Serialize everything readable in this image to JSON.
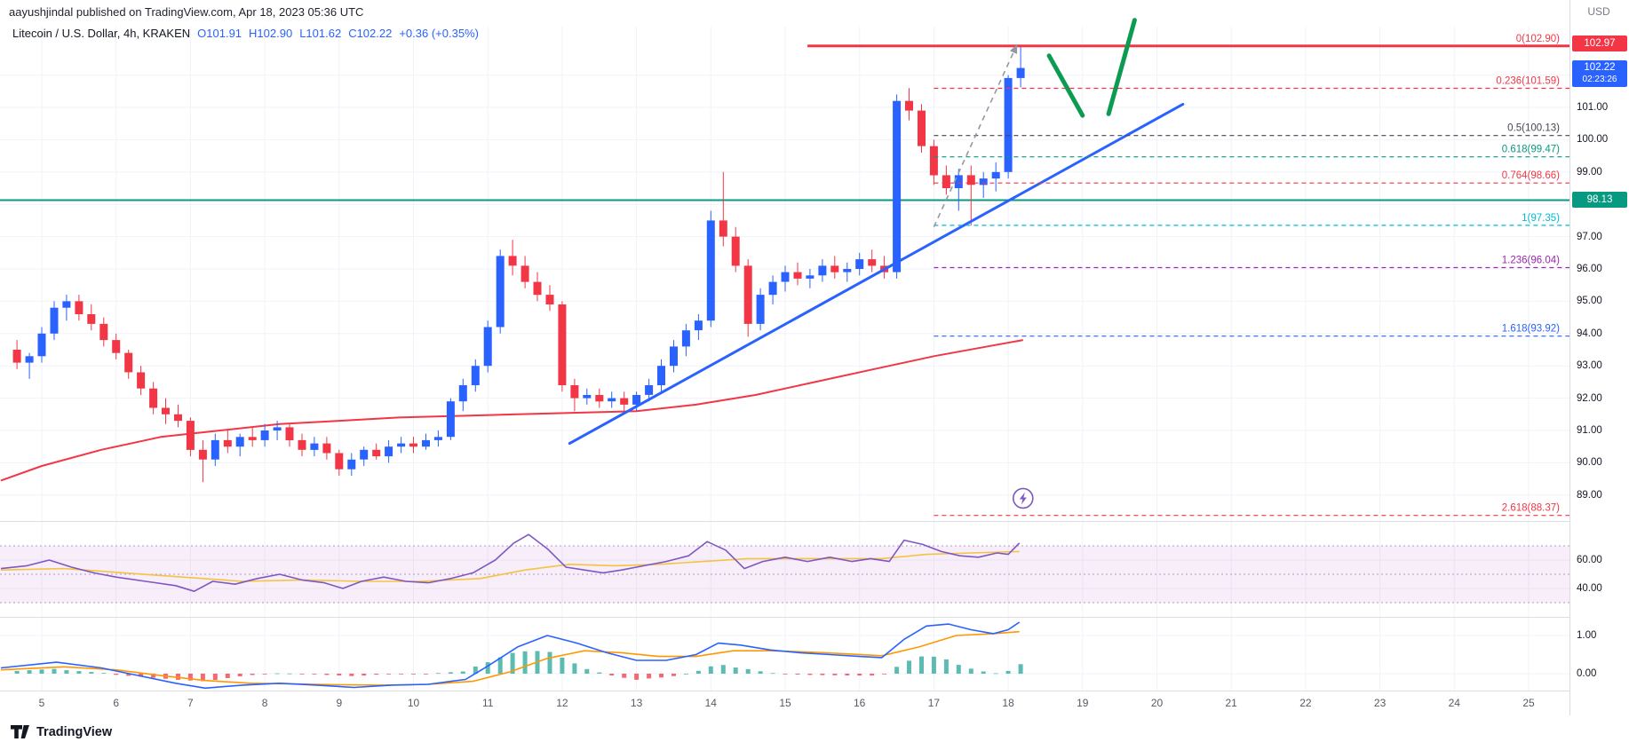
{
  "header": {
    "publisher": "aayushjindal published on TradingView.com, Apr 18, 2023 05:36 UTC",
    "symbol": "Litecoin / U.S. Dollar, 4h, KRAKEN",
    "ohlc": {
      "open": "O101.91",
      "high": "H102.90",
      "low": "L101.62",
      "close": "C102.22",
      "change": "+0.36 (+0.35%)"
    }
  },
  "axis": {
    "currency": "USD",
    "price_labels": [
      "101.00",
      "100.00",
      "99.00",
      "97.00",
      "96.00",
      "95.00",
      "94.00",
      "93.00",
      "92.00",
      "91.00",
      "90.00",
      "89.00"
    ],
    "price_values": [
      101,
      100,
      99,
      97,
      96,
      95,
      94,
      93,
      92,
      91,
      90,
      89
    ],
    "badges": {
      "resistance": {
        "label": "102.97",
        "price": 102.97,
        "color": "#f23645"
      },
      "last": {
        "label": "102.22",
        "countdown": "02:23:26",
        "price": 102.22,
        "color": "#2962ff"
      },
      "support": {
        "label": "98.13",
        "price": 98.13,
        "color": "#089981"
      }
    },
    "rsi_labels": [
      {
        "value": 60,
        "label": "60.00"
      },
      {
        "value": 40,
        "label": "40.00"
      }
    ],
    "macd_labels": [
      {
        "value": 1,
        "label": "1.00"
      },
      {
        "value": 0,
        "label": "0.00"
      }
    ],
    "time_labels": [
      "5",
      "6",
      "7",
      "8",
      "9",
      "10",
      "11",
      "12",
      "13",
      "14",
      "15",
      "16",
      "17",
      "18",
      "19",
      "20",
      "21",
      "22",
      "23",
      "24",
      "25"
    ]
  },
  "chart_data": {
    "type": "candlestick",
    "title": "Litecoin / U.S. Dollar, 4h, KRAKEN",
    "x_unit": "day of April 2023",
    "x_tick_days": [
      5,
      6,
      7,
      8,
      9,
      10,
      11,
      12,
      13,
      14,
      15,
      16,
      17,
      18,
      19,
      20,
      21,
      22,
      23,
      24,
      25
    ],
    "y_range": [
      88.2,
      103.4
    ],
    "up_color": "#2962ff",
    "down_color": "#f23645",
    "candles": {
      "start_day": 4.6667,
      "interval_days": 0.1666667,
      "columns": [
        "open",
        "high",
        "low",
        "close"
      ],
      "ohlc": [
        [
          93.5,
          93.8,
          92.9,
          93.1
        ],
        [
          93.1,
          93.4,
          92.6,
          93.3
        ],
        [
          93.3,
          94.2,
          93.1,
          94.0
        ],
        [
          94.0,
          95.0,
          93.8,
          94.8
        ],
        [
          94.8,
          95.2,
          94.4,
          95.0
        ],
        [
          95.0,
          95.2,
          94.4,
          94.6
        ],
        [
          94.6,
          94.9,
          94.1,
          94.3
        ],
        [
          94.3,
          94.5,
          93.6,
          93.8
        ],
        [
          93.8,
          94.0,
          93.2,
          93.4
        ],
        [
          93.4,
          93.5,
          92.6,
          92.8
        ],
        [
          92.8,
          93.0,
          92.1,
          92.3
        ],
        [
          92.3,
          92.5,
          91.5,
          91.7
        ],
        [
          91.7,
          92.0,
          91.2,
          91.5
        ],
        [
          91.5,
          91.8,
          91.1,
          91.3
        ],
        [
          91.3,
          91.4,
          90.2,
          90.4
        ],
        [
          90.4,
          90.7,
          89.4,
          90.1
        ],
        [
          90.1,
          90.9,
          89.9,
          90.7
        ],
        [
          90.7,
          91.0,
          90.3,
          90.5
        ],
        [
          90.5,
          90.9,
          90.2,
          90.8
        ],
        [
          90.8,
          91.1,
          90.5,
          90.7
        ],
        [
          90.7,
          91.2,
          90.5,
          91.0
        ],
        [
          91.0,
          91.3,
          90.7,
          91.1
        ],
        [
          91.1,
          91.2,
          90.5,
          90.7
        ],
        [
          90.7,
          90.9,
          90.2,
          90.4
        ],
        [
          90.4,
          90.8,
          90.2,
          90.6
        ],
        [
          90.6,
          90.8,
          90.1,
          90.3
        ],
        [
          90.3,
          90.4,
          89.6,
          89.8
        ],
        [
          89.8,
          90.3,
          89.6,
          90.1
        ],
        [
          90.1,
          90.5,
          89.9,
          90.4
        ],
        [
          90.4,
          90.6,
          90.1,
          90.2
        ],
        [
          90.2,
          90.7,
          90.0,
          90.5
        ],
        [
          90.5,
          90.8,
          90.3,
          90.6
        ],
        [
          90.6,
          90.8,
          90.3,
          90.5
        ],
        [
          90.5,
          90.9,
          90.4,
          90.7
        ],
        [
          90.7,
          91.0,
          90.5,
          90.8
        ],
        [
          90.8,
          92.0,
          90.7,
          91.9
        ],
        [
          91.9,
          92.6,
          91.6,
          92.4
        ],
        [
          92.4,
          93.2,
          92.2,
          93.0
        ],
        [
          93.0,
          94.4,
          92.8,
          94.2
        ],
        [
          94.2,
          96.6,
          94.0,
          96.4
        ],
        [
          96.4,
          96.9,
          95.8,
          96.1
        ],
        [
          96.1,
          96.4,
          95.4,
          95.6
        ],
        [
          95.6,
          95.9,
          95.0,
          95.2
        ],
        [
          95.2,
          95.5,
          94.7,
          94.9
        ],
        [
          94.9,
          95.0,
          92.2,
          92.4
        ],
        [
          92.4,
          92.6,
          91.6,
          92.0
        ],
        [
          92.0,
          92.3,
          91.8,
          92.1
        ],
        [
          92.1,
          92.3,
          91.7,
          91.9
        ],
        [
          91.9,
          92.2,
          91.7,
          92.0
        ],
        [
          92.0,
          92.2,
          91.6,
          91.8
        ],
        [
          91.8,
          92.2,
          91.6,
          92.1
        ],
        [
          92.1,
          92.6,
          91.9,
          92.4
        ],
        [
          92.4,
          93.2,
          92.2,
          93.0
        ],
        [
          93.0,
          93.8,
          92.8,
          93.6
        ],
        [
          93.6,
          94.3,
          93.3,
          94.1
        ],
        [
          94.1,
          94.6,
          93.8,
          94.4
        ],
        [
          94.4,
          97.8,
          94.2,
          97.5
        ],
        [
          97.5,
          99.0,
          96.7,
          97.0
        ],
        [
          97.0,
          97.3,
          95.9,
          96.1
        ],
        [
          96.1,
          96.3,
          93.9,
          94.3
        ],
        [
          94.3,
          95.4,
          94.1,
          95.2
        ],
        [
          95.2,
          95.8,
          94.9,
          95.6
        ],
        [
          95.6,
          96.1,
          95.3,
          95.9
        ],
        [
          95.9,
          96.2,
          95.5,
          95.7
        ],
        [
          95.7,
          96.0,
          95.4,
          95.8
        ],
        [
          95.8,
          96.3,
          95.6,
          96.1
        ],
        [
          96.1,
          96.4,
          95.7,
          95.9
        ],
        [
          95.9,
          96.2,
          95.6,
          96.0
        ],
        [
          96.0,
          96.5,
          95.8,
          96.3
        ],
        [
          96.3,
          96.6,
          95.9,
          96.1
        ],
        [
          96.1,
          96.4,
          95.7,
          95.9
        ],
        [
          95.9,
          101.4,
          95.7,
          101.2
        ],
        [
          101.2,
          101.6,
          100.6,
          100.9
        ],
        [
          100.9,
          101.1,
          99.6,
          99.8
        ],
        [
          99.8,
          100.0,
          98.6,
          98.9
        ],
        [
          98.9,
          99.2,
          98.3,
          98.5
        ],
        [
          98.5,
          99.1,
          97.8,
          98.9
        ],
        [
          98.9,
          99.2,
          97.35,
          98.6
        ],
        [
          98.6,
          99.0,
          98.2,
          98.8
        ],
        [
          98.8,
          99.3,
          98.4,
          99.0
        ],
        [
          99.0,
          102.0,
          98.8,
          101.91
        ],
        [
          101.91,
          102.9,
          101.62,
          102.22
        ]
      ]
    },
    "red_ma": [
      [
        4.45,
        89.45
      ],
      [
        5.0,
        89.9
      ],
      [
        5.8,
        90.4
      ],
      [
        6.6,
        90.8
      ],
      [
        7.4,
        91.0
      ],
      [
        8.2,
        91.2
      ],
      [
        9.0,
        91.3
      ],
      [
        9.8,
        91.4
      ],
      [
        10.6,
        91.45
      ],
      [
        11.4,
        91.5
      ],
      [
        12.2,
        91.55
      ],
      [
        13.0,
        91.6
      ],
      [
        13.8,
        91.8
      ],
      [
        14.6,
        92.1
      ],
      [
        15.4,
        92.5
      ],
      [
        16.2,
        92.9
      ],
      [
        17.0,
        93.3
      ],
      [
        17.6,
        93.55
      ],
      [
        18.2,
        93.8
      ]
    ],
    "support_hline": {
      "price": 98.13,
      "color": "#089981"
    },
    "trendline": {
      "from_day": 12.1,
      "from_price": 90.6,
      "to_day": 20.35,
      "to_price": 101.1,
      "color": "#2962ff"
    },
    "fib_levels": [
      {
        "label": "0(102.90)",
        "price": 102.9,
        "color": "#f23645",
        "dashed": false,
        "from_day": 15.3,
        "width": 3
      },
      {
        "label": "0.236(101.59)",
        "price": 101.59,
        "color": "#f23645",
        "dashed": true,
        "from_day": 17.0
      },
      {
        "label": "0.5(100.13)",
        "price": 100.13,
        "color": "#434651",
        "dashed": true,
        "from_day": 17.0
      },
      {
        "label": "0.618(99.47)",
        "price": 99.47,
        "color": "#089981",
        "dashed": true,
        "from_day": 17.0
      },
      {
        "label": "0.764(98.66)",
        "price": 98.66,
        "color": "#f23645",
        "dashed": true,
        "from_day": 17.0
      },
      {
        "label": "1(97.35)",
        "price": 97.35,
        "color": "#00bcd4",
        "dashed": true,
        "from_day": 17.0
      },
      {
        "label": "1.236(96.04)",
        "price": 96.04,
        "color": "#9c27b0",
        "dashed": true,
        "from_day": 17.0
      },
      {
        "label": "1.618(93.92)",
        "price": 93.92,
        "color": "#2962ff",
        "dashed": true,
        "from_day": 17.0
      },
      {
        "label": "2.618(88.37)",
        "price": 88.37,
        "color": "#f23645",
        "dashed": true,
        "from_day": 17.0
      }
    ],
    "projection": {
      "dashed_arrow": {
        "from_day": 17.0,
        "from_price": 97.3,
        "to_day": 18.12,
        "to_price": 102.95,
        "color": "#9598a1"
      },
      "green_strokes": [
        {
          "from_day": 18.55,
          "from_price": 102.6,
          "to_day": 19.0,
          "to_price": 100.75
        },
        {
          "from_day": 19.35,
          "from_price": 100.8,
          "to_day": 19.7,
          "to_price": 103.7
        }
      ],
      "green_color": "#0c9b51"
    },
    "marker": {
      "day": 18.2,
      "price": 88.9,
      "icon": "lightning-icon",
      "color": "#7e57c2"
    },
    "rsi": {
      "line_color": "#7e57c2",
      "ma_color": "#f5c242",
      "band": [
        30,
        70
      ],
      "mid": 50,
      "band_color": "rgba(156,39,176,0.08)",
      "line": [
        [
          4.45,
          54
        ],
        [
          4.8,
          56
        ],
        [
          5.1,
          60
        ],
        [
          5.4,
          55
        ],
        [
          5.7,
          51
        ],
        [
          6.0,
          48
        ],
        [
          6.4,
          45
        ],
        [
          6.8,
          42
        ],
        [
          7.05,
          38
        ],
        [
          7.3,
          45
        ],
        [
          7.6,
          43
        ],
        [
          7.9,
          47
        ],
        [
          8.2,
          50
        ],
        [
          8.5,
          46
        ],
        [
          8.8,
          44
        ],
        [
          9.05,
          40
        ],
        [
          9.3,
          45
        ],
        [
          9.6,
          48
        ],
        [
          9.9,
          45
        ],
        [
          10.2,
          44
        ],
        [
          10.5,
          47
        ],
        [
          10.8,
          51
        ],
        [
          11.1,
          60
        ],
        [
          11.35,
          72
        ],
        [
          11.55,
          78
        ],
        [
          11.8,
          68
        ],
        [
          12.05,
          55
        ],
        [
          12.3,
          53
        ],
        [
          12.55,
          51
        ],
        [
          12.8,
          53
        ],
        [
          13.1,
          56
        ],
        [
          13.4,
          59
        ],
        [
          13.7,
          63
        ],
        [
          13.95,
          73
        ],
        [
          14.2,
          67
        ],
        [
          14.45,
          54
        ],
        [
          14.7,
          59
        ],
        [
          15.0,
          62
        ],
        [
          15.3,
          59
        ],
        [
          15.6,
          62
        ],
        [
          15.9,
          59
        ],
        [
          16.15,
          61
        ],
        [
          16.4,
          59
        ],
        [
          16.6,
          74
        ],
        [
          16.85,
          71
        ],
        [
          17.1,
          66
        ],
        [
          17.35,
          63
        ],
        [
          17.6,
          62
        ],
        [
          17.85,
          65
        ],
        [
          18.0,
          64
        ],
        [
          18.15,
          72
        ]
      ],
      "ma": [
        [
          4.45,
          53
        ],
        [
          5.3,
          54
        ],
        [
          6.1,
          51
        ],
        [
          6.9,
          48
        ],
        [
          7.7,
          45
        ],
        [
          8.5,
          46
        ],
        [
          9.3,
          45
        ],
        [
          10.1,
          45
        ],
        [
          10.9,
          47
        ],
        [
          11.5,
          53
        ],
        [
          12.1,
          57
        ],
        [
          12.7,
          56
        ],
        [
          13.3,
          57
        ],
        [
          13.9,
          59
        ],
        [
          14.5,
          61
        ],
        [
          15.1,
          61
        ],
        [
          15.7,
          61
        ],
        [
          16.3,
          61
        ],
        [
          16.9,
          64
        ],
        [
          17.5,
          65
        ],
        [
          18.15,
          66
        ]
      ]
    },
    "macd": {
      "macd_color": "#2962ff",
      "signal_color": "#ff9800",
      "hist_up": "#26a69a",
      "hist_down": "#f23645",
      "macd": [
        [
          4.45,
          0.15
        ],
        [
          5.2,
          0.3
        ],
        [
          5.8,
          0.15
        ],
        [
          6.3,
          -0.05
        ],
        [
          6.8,
          -0.25
        ],
        [
          7.2,
          -0.38
        ],
        [
          7.7,
          -0.3
        ],
        [
          8.2,
          -0.25
        ],
        [
          8.7,
          -0.3
        ],
        [
          9.2,
          -0.36
        ],
        [
          9.7,
          -0.3
        ],
        [
          10.2,
          -0.28
        ],
        [
          10.7,
          -0.15
        ],
        [
          11.0,
          0.2
        ],
        [
          11.4,
          0.7
        ],
        [
          11.8,
          1.0
        ],
        [
          12.2,
          0.8
        ],
        [
          12.6,
          0.55
        ],
        [
          13.0,
          0.35
        ],
        [
          13.4,
          0.35
        ],
        [
          13.8,
          0.5
        ],
        [
          14.1,
          0.8
        ],
        [
          14.4,
          0.75
        ],
        [
          14.8,
          0.62
        ],
        [
          15.2,
          0.55
        ],
        [
          15.6,
          0.5
        ],
        [
          16.0,
          0.45
        ],
        [
          16.3,
          0.42
        ],
        [
          16.6,
          0.9
        ],
        [
          16.9,
          1.25
        ],
        [
          17.2,
          1.3
        ],
        [
          17.5,
          1.15
        ],
        [
          17.8,
          1.05
        ],
        [
          18.0,
          1.15
        ],
        [
          18.15,
          1.35
        ]
      ],
      "signal": [
        [
          4.45,
          0.1
        ],
        [
          5.3,
          0.18
        ],
        [
          6.0,
          0.1
        ],
        [
          6.6,
          -0.05
        ],
        [
          7.2,
          -0.18
        ],
        [
          7.8,
          -0.25
        ],
        [
          8.4,
          -0.27
        ],
        [
          9.0,
          -0.29
        ],
        [
          9.6,
          -0.3
        ],
        [
          10.2,
          -0.28
        ],
        [
          10.8,
          -0.2
        ],
        [
          11.3,
          0.05
        ],
        [
          11.8,
          0.4
        ],
        [
          12.3,
          0.6
        ],
        [
          12.8,
          0.55
        ],
        [
          13.3,
          0.45
        ],
        [
          13.8,
          0.45
        ],
        [
          14.3,
          0.6
        ],
        [
          14.8,
          0.6
        ],
        [
          15.3,
          0.57
        ],
        [
          15.8,
          0.52
        ],
        [
          16.3,
          0.47
        ],
        [
          16.8,
          0.7
        ],
        [
          17.3,
          1.0
        ],
        [
          17.8,
          1.05
        ],
        [
          18.15,
          1.1
        ]
      ]
    }
  },
  "footer": {
    "brand": "TradingView"
  },
  "icons": [
    "lightning-icon",
    "tradingview-logo-icon"
  ]
}
